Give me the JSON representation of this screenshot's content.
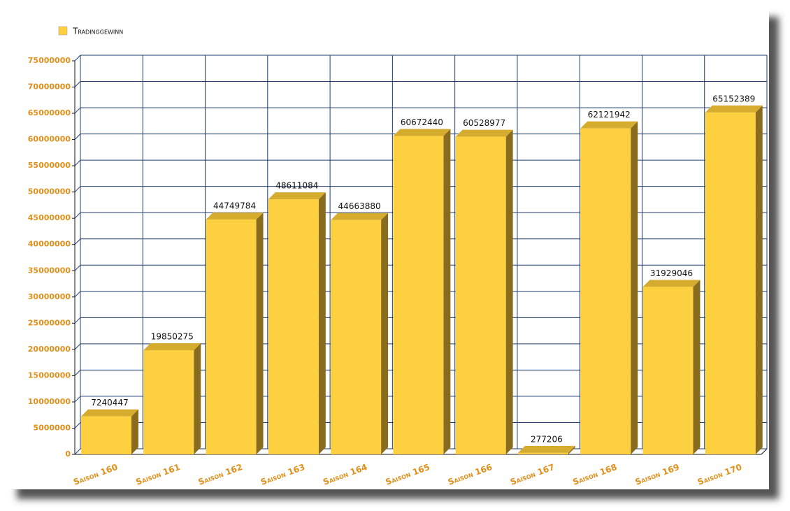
{
  "chart_data": {
    "type": "bar",
    "categories": [
      "Saison 160",
      "Saison 161",
      "Saison 162",
      "Saison 163",
      "Saison 164",
      "Saison 165",
      "Saison 166",
      "Saison 167",
      "Saison 168",
      "Saison 169",
      "Saison 170"
    ],
    "series": [
      {
        "name": "Tradinggewinn",
        "color": "#fdd03f",
        "values": [
          7240447,
          19850275,
          44749784,
          48611084,
          44663880,
          60672440,
          60528977,
          277206,
          62121942,
          31929046,
          65152389
        ]
      }
    ],
    "ylim": [
      0,
      75000000
    ],
    "yticks": [
      0,
      5000000,
      10000000,
      15000000,
      20000000,
      25000000,
      30000000,
      35000000,
      40000000,
      45000000,
      50000000,
      55000000,
      60000000,
      65000000,
      70000000,
      75000000
    ],
    "grid": true,
    "legend": "top-left"
  }
}
